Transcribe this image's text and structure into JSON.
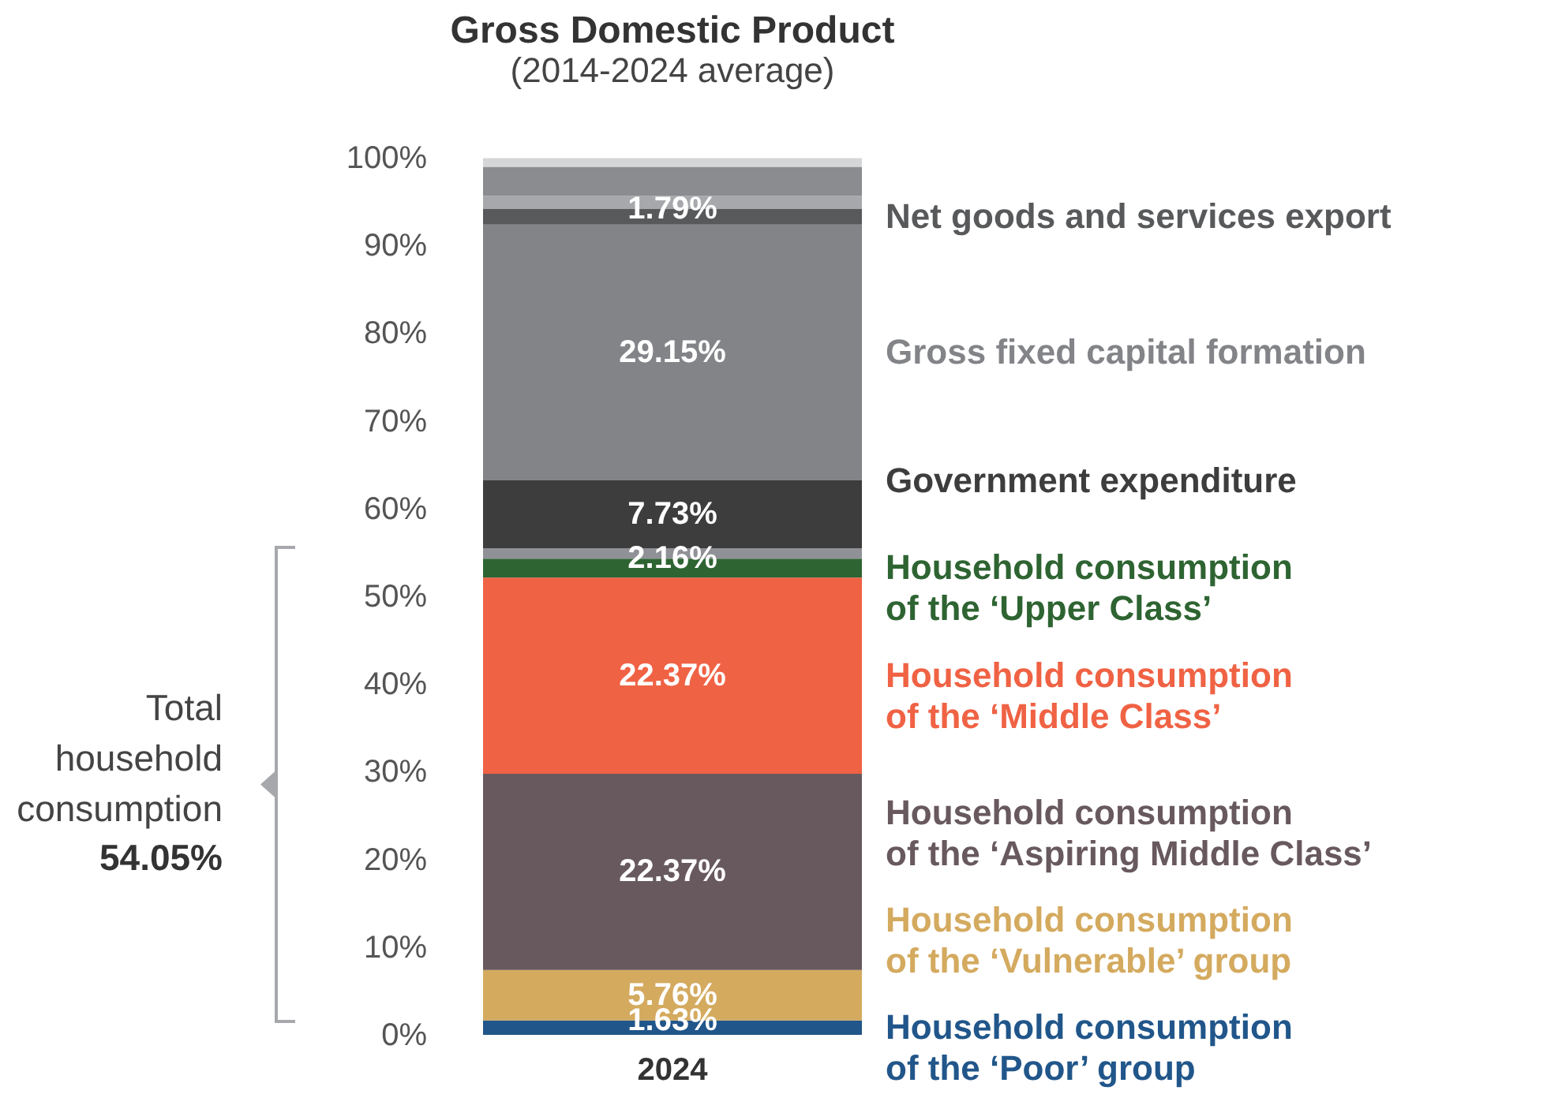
{
  "chart_data": {
    "type": "bar",
    "stacked": true,
    "title": "Gross Domestic Product",
    "subtitle": "(2014-2024 average)",
    "categories": [
      "2024"
    ],
    "ylim": [
      0,
      100
    ],
    "yticks": [
      {
        "value": 0,
        "label": "0%"
      },
      {
        "value": 10,
        "label": "10%"
      },
      {
        "value": 20,
        "label": "20%"
      },
      {
        "value": 30,
        "label": "30%"
      },
      {
        "value": 40,
        "label": "40%"
      },
      {
        "value": 50,
        "label": "50%"
      },
      {
        "value": 60,
        "label": "60%"
      },
      {
        "value": 70,
        "label": "70%"
      },
      {
        "value": 80,
        "label": "80%"
      },
      {
        "value": 90,
        "label": "90%"
      },
      {
        "value": 100,
        "label": "100%"
      }
    ],
    "grid": false,
    "series": [
      {
        "name": "Household consumption\nof the ‘Poor’ group",
        "color": "#21568a",
        "values": [
          1.63
        ],
        "value_labels": [
          "1.63%"
        ]
      },
      {
        "name": "Household consumption\nof the ‘Vulnerable’ group",
        "color": "#d4aa5f",
        "values": [
          5.76
        ],
        "value_labels": [
          "5.76%"
        ]
      },
      {
        "name": "Household consumption\nof the ‘Aspiring Middle Class’",
        "color": "#68595e",
        "values": [
          22.37
        ],
        "value_labels": [
          "22.37%"
        ]
      },
      {
        "name": "Household consumption\nof the ‘Middle Class’",
        "color": "#f06244",
        "values": [
          22.37
        ],
        "value_labels": [
          "22.37%"
        ]
      },
      {
        "name": "Household consumption\nof the ‘Upper Class’",
        "color": "#2e6432",
        "values": [
          2.16
        ],
        "value_labels": [
          "2.16%"
        ]
      },
      {
        "color": "#909196",
        "values": [
          1.2
        ]
      },
      {
        "name": "Government expenditure",
        "color": "#3d3d3e",
        "values": [
          7.73
        ],
        "value_labels": [
          "7.73%"
        ]
      },
      {
        "name": "Gross fixed capital formation",
        "color": "#838488",
        "values": [
          29.15
        ],
        "value_labels": [
          "29.15%"
        ]
      },
      {
        "name": "Net goods and services export",
        "color": "#58595b",
        "values": [
          1.79
        ],
        "value_labels": [
          "1.79%"
        ]
      },
      {
        "color": "#a7a8ab",
        "values": [
          1.5
        ]
      },
      {
        "color": "#8b8c90",
        "values": [
          3.3
        ]
      },
      {
        "color": "#d5d6d8",
        "values": [
          1.0
        ]
      }
    ],
    "annotations": [
      "Total\nhousehold\nconsumption",
      "54.05%"
    ]
  }
}
